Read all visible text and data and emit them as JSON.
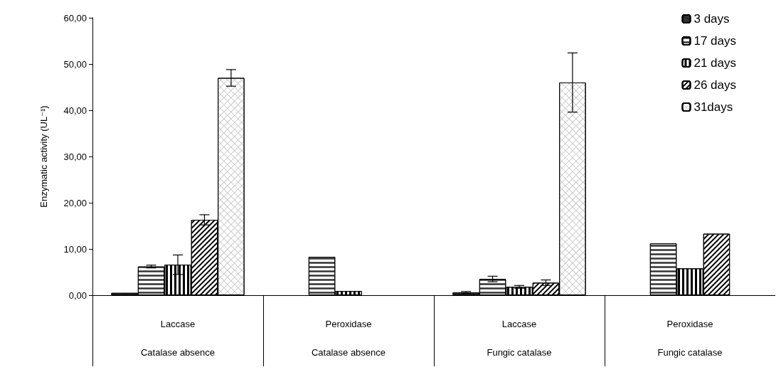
{
  "chart_data": {
    "type": "bar",
    "ylabel": "Enzymatic activity (UL⁻¹)",
    "categories": [
      "Laccase\nCatalase absence",
      "Peroxidase\nCatalase absence",
      "Laccase\nFungic catalase",
      "Peroxidase\nFungic catalase"
    ],
    "series": [
      {
        "name": "3 days",
        "color": "#333333",
        "values": [
          0.5,
          null,
          0.6,
          null
        ],
        "errors": [
          null,
          null,
          0.2,
          null
        ]
      },
      {
        "name": "17 days",
        "color": "#000000",
        "values": [
          6.2,
          8.3,
          3.5,
          11.2
        ],
        "errors": [
          0.3,
          null,
          0.6,
          null
        ]
      },
      {
        "name": "21 days",
        "color": "#000000",
        "values": [
          6.6,
          0.9,
          1.8,
          5.8
        ],
        "errors": [
          2.1,
          null,
          0.3,
          null
        ]
      },
      {
        "name": "26 days",
        "color": "#000000",
        "values": [
          16.3,
          null,
          2.7,
          13.3
        ],
        "errors": [
          1.1,
          null,
          0.6,
          null
        ]
      },
      {
        "name": "31days",
        "color": "#ffffff",
        "values": [
          47.0,
          null,
          46.0,
          null
        ],
        "errors": [
          1.8,
          null,
          6.4,
          null
        ]
      }
    ],
    "ylim": [
      0,
      60
    ],
    "yticks": [
      {
        "value": 0,
        "label": "0,00"
      },
      {
        "value": 10,
        "label": "10,00"
      },
      {
        "value": 20,
        "label": "20,00"
      },
      {
        "value": 30,
        "label": "30,00"
      },
      {
        "value": 40,
        "label": "40,00"
      },
      {
        "value": 50,
        "label": "50,00"
      },
      {
        "value": 60,
        "label": "60,00"
      }
    ],
    "grid": false,
    "legend": "top right"
  }
}
